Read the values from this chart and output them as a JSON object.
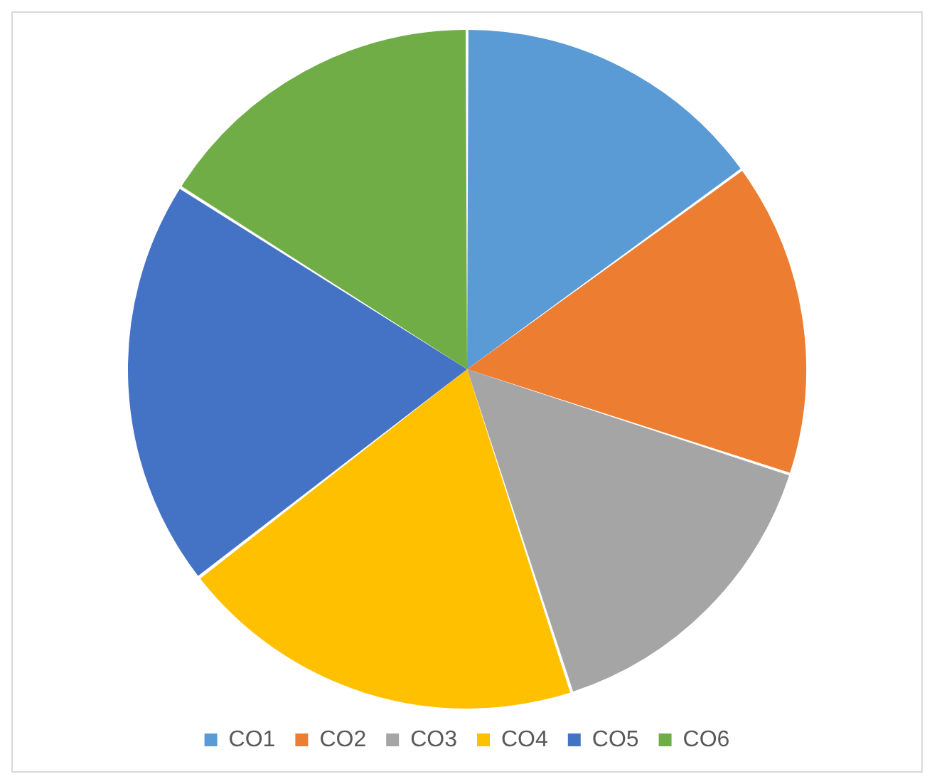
{
  "chart_data": {
    "type": "pie",
    "categories": [
      "CO1",
      "CO2",
      "CO3",
      "CO4",
      "CO5",
      "CO6"
    ],
    "values": [
      15,
      15,
      15,
      19.5,
      19.5,
      16
    ],
    "colors": [
      "#5b9bd5",
      "#ed7d31",
      "#a5a5a5",
      "#ffc000",
      "#4472c4",
      "#70ad47"
    ],
    "legend": "bottom"
  }
}
